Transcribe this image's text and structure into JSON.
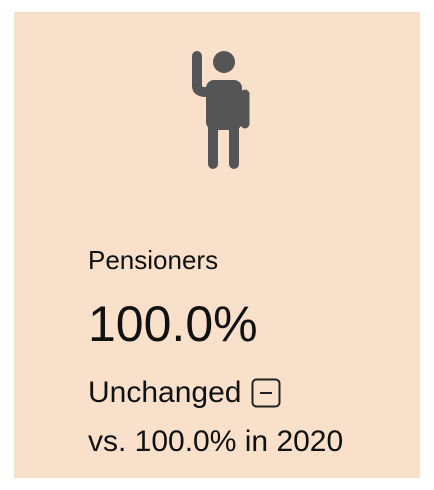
{
  "card": {
    "label": "Pensioners",
    "value": "100.0%",
    "change": "Unchanged",
    "comparison": "vs. 100.0% in 2020"
  }
}
